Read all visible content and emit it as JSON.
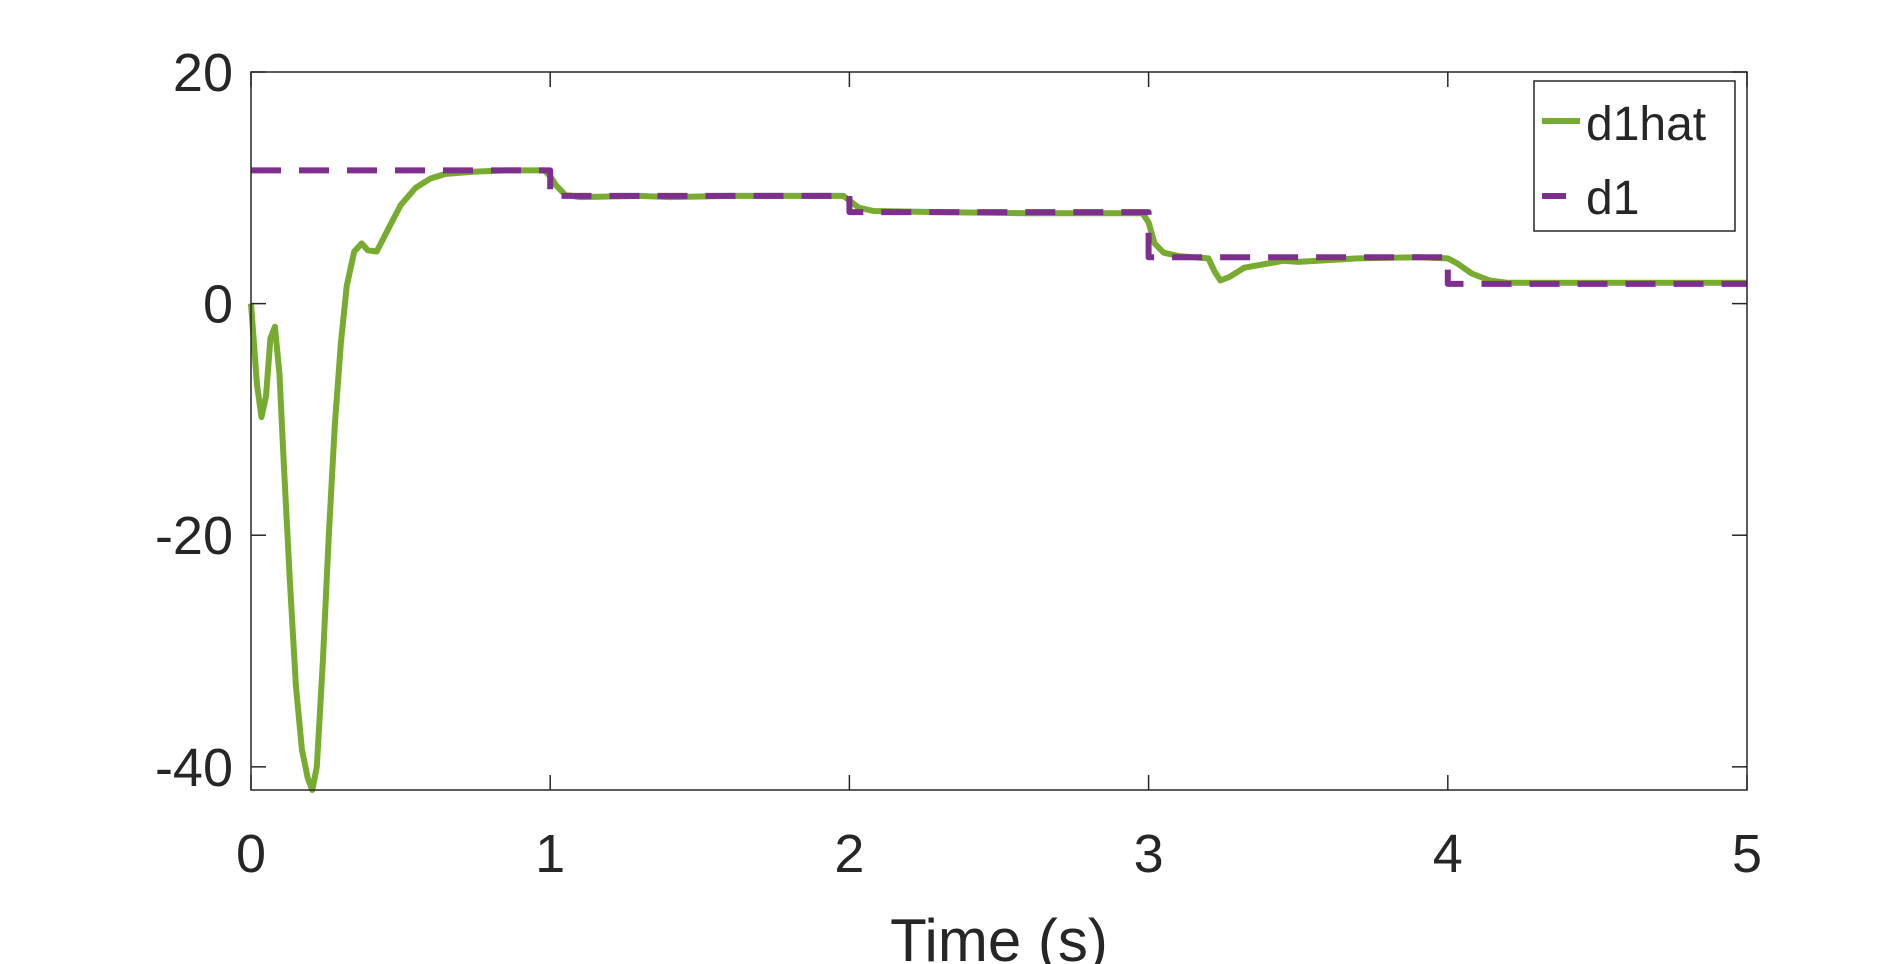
{
  "chart_data": {
    "type": "line",
    "xlabel": "Time (s)",
    "ylabel": "",
    "xlim": [
      0,
      5
    ],
    "ylim": [
      -42,
      20
    ],
    "x_ticks": [
      0,
      1,
      2,
      3,
      4,
      5
    ],
    "y_ticks": [
      -40,
      -20,
      0,
      20
    ],
    "x_tick_labels": [
      "0",
      "1",
      "2",
      "3",
      "4",
      "5"
    ],
    "y_tick_labels": [
      "-40",
      "-20",
      "0",
      "20"
    ],
    "grid": false,
    "legend_position": "top-right",
    "series": [
      {
        "name": "d1hat",
        "color": "#77AC30",
        "style": "solid",
        "points": [
          [
            0.0,
            0.0
          ],
          [
            0.01,
            -3.5
          ],
          [
            0.02,
            -7.0
          ],
          [
            0.035,
            -9.8
          ],
          [
            0.05,
            -8.0
          ],
          [
            0.065,
            -3.0
          ],
          [
            0.08,
            -2.0
          ],
          [
            0.095,
            -6.0
          ],
          [
            0.11,
            -14.0
          ],
          [
            0.13,
            -24.0
          ],
          [
            0.15,
            -33.0
          ],
          [
            0.17,
            -38.5
          ],
          [
            0.19,
            -41.0
          ],
          [
            0.205,
            -42.0
          ],
          [
            0.22,
            -40.0
          ],
          [
            0.24,
            -31.0
          ],
          [
            0.26,
            -20.0
          ],
          [
            0.28,
            -10.5
          ],
          [
            0.3,
            -3.5
          ],
          [
            0.32,
            1.5
          ],
          [
            0.345,
            4.5
          ],
          [
            0.37,
            5.2
          ],
          [
            0.39,
            4.6
          ],
          [
            0.42,
            4.5
          ],
          [
            0.46,
            6.5
          ],
          [
            0.5,
            8.5
          ],
          [
            0.55,
            10.0
          ],
          [
            0.6,
            10.8
          ],
          [
            0.65,
            11.2
          ],
          [
            0.75,
            11.4
          ],
          [
            0.85,
            11.5
          ],
          [
            0.98,
            11.5
          ],
          [
            1.0,
            11.0
          ],
          [
            1.02,
            10.2
          ],
          [
            1.05,
            9.4
          ],
          [
            1.1,
            9.2
          ],
          [
            1.3,
            9.3
          ],
          [
            1.4,
            9.2
          ],
          [
            1.6,
            9.3
          ],
          [
            1.8,
            9.3
          ],
          [
            1.98,
            9.3
          ],
          [
            2.0,
            8.9
          ],
          [
            2.03,
            8.3
          ],
          [
            2.08,
            8.0
          ],
          [
            2.3,
            7.9
          ],
          [
            2.6,
            7.8
          ],
          [
            2.8,
            7.8
          ],
          [
            2.98,
            7.8
          ],
          [
            3.0,
            7.0
          ],
          [
            3.02,
            5.2
          ],
          [
            3.05,
            4.4
          ],
          [
            3.1,
            4.1
          ],
          [
            3.2,
            3.9
          ],
          [
            3.22,
            2.8
          ],
          [
            3.24,
            2.0
          ],
          [
            3.27,
            2.3
          ],
          [
            3.32,
            3.1
          ],
          [
            3.45,
            3.7
          ],
          [
            3.5,
            3.6
          ],
          [
            3.7,
            3.9
          ],
          [
            3.9,
            4.0
          ],
          [
            4.0,
            3.9
          ],
          [
            4.03,
            3.5
          ],
          [
            4.08,
            2.6
          ],
          [
            4.14,
            2.0
          ],
          [
            4.2,
            1.8
          ],
          [
            4.4,
            1.8
          ],
          [
            4.6,
            1.8
          ],
          [
            5.0,
            1.8
          ]
        ]
      },
      {
        "name": "d1",
        "color": "#7E2F8E",
        "style": "dashed",
        "points": [
          [
            0.0,
            11.5
          ],
          [
            1.0,
            11.5
          ],
          [
            1.0,
            9.3
          ],
          [
            2.0,
            9.3
          ],
          [
            2.0,
            7.9
          ],
          [
            3.0,
            7.9
          ],
          [
            3.0,
            4.0
          ],
          [
            4.0,
            4.0
          ],
          [
            4.0,
            1.7
          ],
          [
            5.0,
            1.7
          ]
        ]
      }
    ]
  }
}
